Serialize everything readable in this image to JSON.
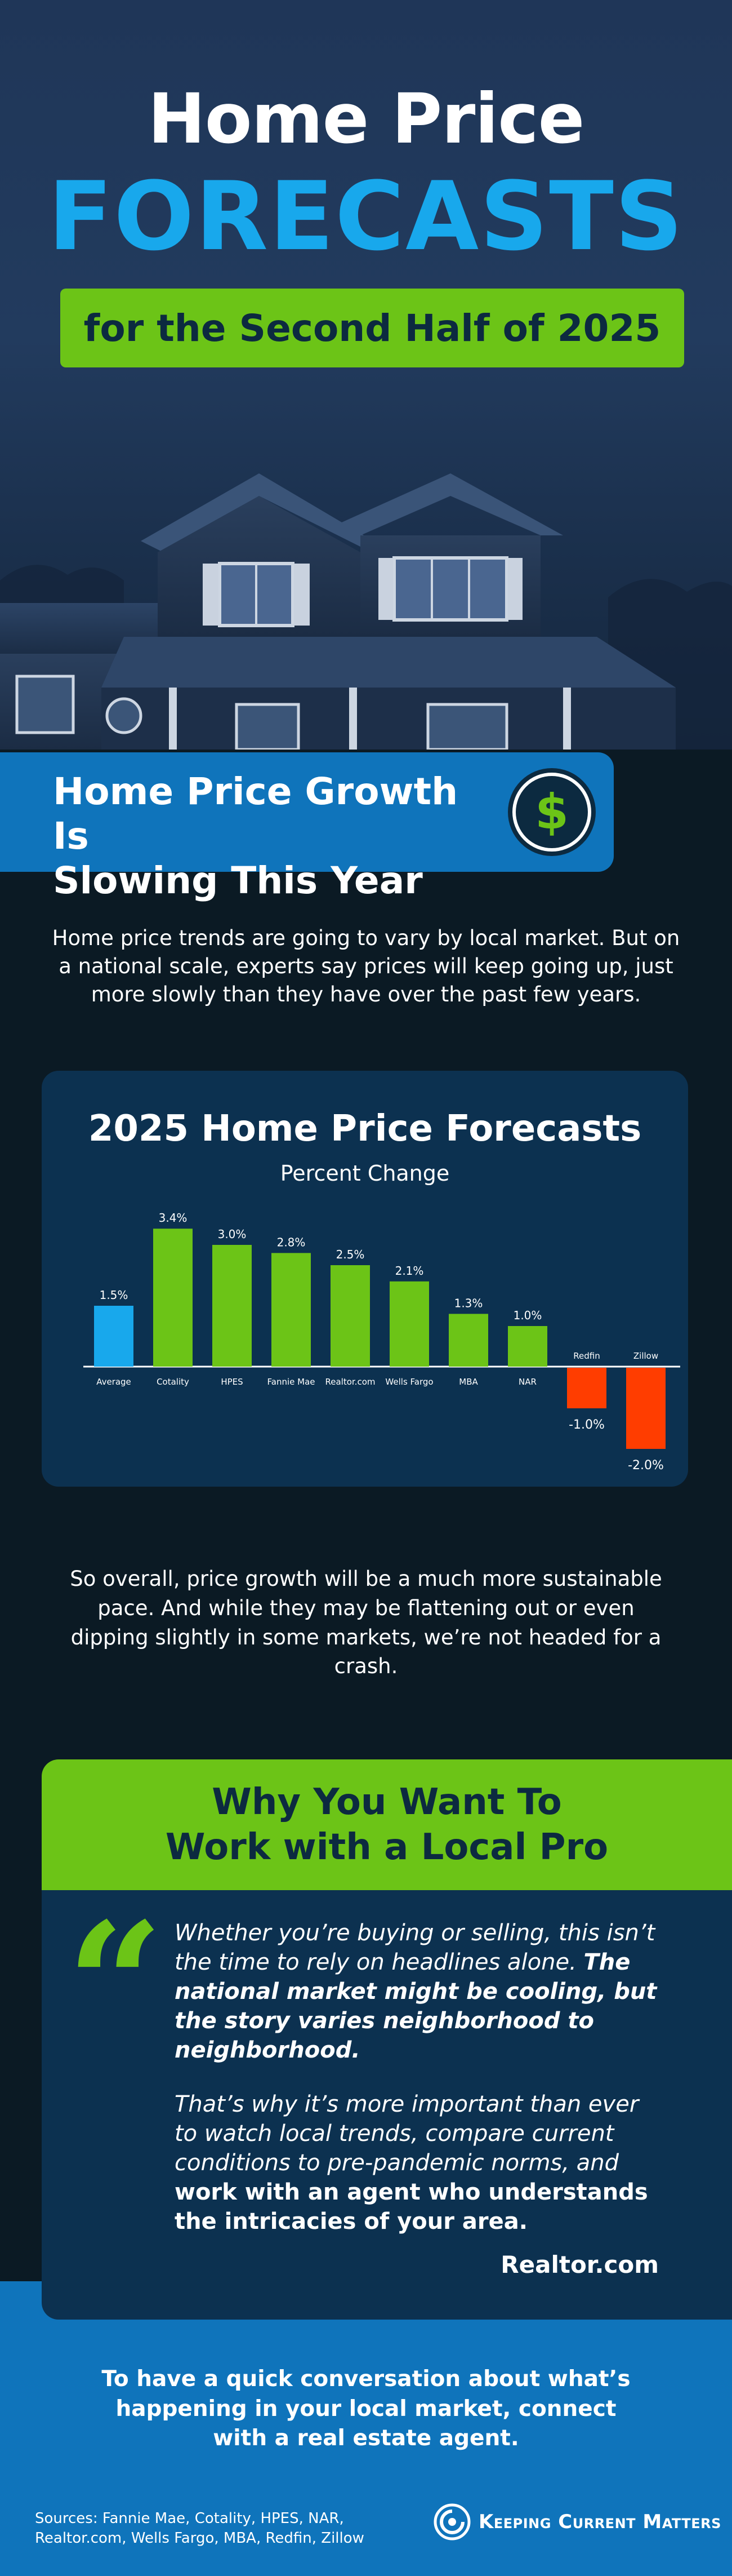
{
  "hero": {
    "title_line1": "Home Price",
    "title_line2": "FORECASTS",
    "banner": "for the Second Half of 2025"
  },
  "growth": {
    "heading_line1": "Home Price Growth Is",
    "heading_line2": "Slowing This Year",
    "icon": "dollar-icon",
    "icon_glyph": "$"
  },
  "intro": "Home price trends are going to vary by local market. But on a national scale, experts say prices will keep going up, just more slowly than they have over the past few years.",
  "chart_data": {
    "type": "bar",
    "title": "2025 Home Price Forecasts",
    "subtitle": "Percent Change",
    "categories": [
      "Average",
      "Cotality",
      "HPES",
      "Fannie Mae",
      "Realtor.com",
      "Wells Fargo",
      "MBA",
      "NAR",
      "Redfin",
      "Zillow"
    ],
    "values": [
      1.5,
      3.4,
      3.0,
      2.8,
      2.5,
      2.1,
      1.3,
      1.0,
      -1.0,
      -2.0
    ],
    "value_labels": [
      "1.5%",
      "3.4%",
      "3.0%",
      "2.8%",
      "2.5%",
      "2.1%",
      "1.3%",
      "1.0%",
      "-1.0%",
      "-2.0%"
    ],
    "colors": {
      "average": "#18a8ec",
      "positive": "#6cc417",
      "negative": "#ff3d00"
    },
    "ylim": [
      -2.0,
      3.4
    ],
    "grid": false,
    "legend": "none"
  },
  "summary": "So overall, price growth will be a much more sustainable pace. And while they may be flattening out or even dipping slightly in some markets, we’re not headed for a crash.",
  "pro": {
    "heading_line1": "Why You Want To",
    "heading_line2": "Work with a Local Pro",
    "quote_icon": "quote-icon",
    "quote_glyph": "“",
    "p1_normal": "Whether you’re buying or selling, this isn’t the time to rely on headlines alone. ",
    "p1_bold": "The national market might be cooling, but the story varies neighborhood to neighborhood.",
    "p2_normal": "That’s why it’s more important than ever to watch local trends, compare current conditions to pre-pandemic norms, and ",
    "p2_bold": "work with an agent who understands the intricacies of your area.",
    "source": "Realtor.com"
  },
  "footer": {
    "cta": "To have a quick conversation about what’s happening in your local market, connect with a real estate agent.",
    "sources": "Sources: Fannie Mae, Cotality, HPES, NAR, Realtor.com, Wells Fargo, MBA, Redfin, Zillow",
    "brand": "Keeping Current Matters"
  }
}
